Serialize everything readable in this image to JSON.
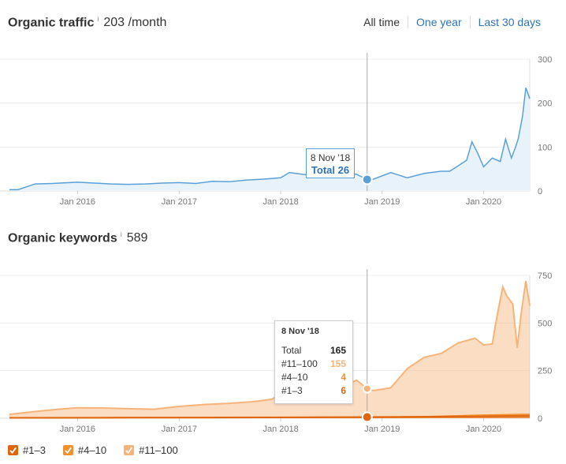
{
  "traffic": {
    "title": "Organic traffic",
    "info": "i",
    "value": "203 /month",
    "range_tabs": [
      {
        "label": "All time",
        "active": true
      },
      {
        "label": "One year",
        "active": false
      },
      {
        "label": "Last 30 days",
        "active": false
      }
    ],
    "tooltip": {
      "date": "8 Nov '18",
      "total": "Total 26"
    }
  },
  "keywords": {
    "title": "Organic keywords",
    "info": "i",
    "value": "589",
    "tooltip": {
      "date": "8 Nov '18",
      "rows": [
        {
          "label": "Total",
          "value": "165",
          "color": "#222222"
        },
        {
          "label": "#11–100",
          "value": "155",
          "color": "#f7b47a"
        },
        {
          "label": "#4–10",
          "value": "4",
          "color": "#f0902f"
        },
        {
          "label": "#1–3",
          "value": "6",
          "color": "#e0650f"
        }
      ]
    },
    "legend": [
      {
        "label": "#1–3",
        "color": "#e0650f",
        "icon": "checkbox-checked-icon"
      },
      {
        "label": "#4–10",
        "color": "#f0902f",
        "icon": "checkbox-checked-icon"
      },
      {
        "label": "#11–100",
        "color": "#f7b47a",
        "icon": "checkbox-checked-icon"
      }
    ]
  },
  "chart_data": [
    {
      "type": "area",
      "title": "Organic traffic",
      "x_tick_labels": [
        "Jan 2016",
        "Jan 2017",
        "Jan 2018",
        "Jan 2019",
        "Jan 2020"
      ],
      "y_tick_labels": [
        "0",
        "100",
        "200",
        "300"
      ],
      "ylim": [
        0,
        300
      ],
      "xlim": [
        "2015-05-01",
        "2020-06-15"
      ],
      "grid": true,
      "colors": {
        "line": "#5aa0d8",
        "fill": "#e8f2fb"
      },
      "series": [
        {
          "x": [
            "2015-05-01",
            "2015-06-01",
            "2015-08-01",
            "2015-10-01",
            "2016-01-01",
            "2016-03-01",
            "2016-05-01",
            "2016-07-01",
            "2016-09-01",
            "2016-11-01",
            "2017-01-01",
            "2017-03-01",
            "2017-05-01",
            "2017-07-01",
            "2017-09-01",
            "2017-11-01",
            "2018-01-01",
            "2018-02-01",
            "2018-04-01",
            "2018-06-01",
            "2018-08-01",
            "2018-10-01",
            "2018-11-08",
            "2018-12-01",
            "2019-02-01",
            "2019-04-01",
            "2019-06-01",
            "2019-08-01",
            "2019-09-01",
            "2019-10-01",
            "2019-11-01",
            "2019-11-20",
            "2019-12-10",
            "2020-01-01",
            "2020-02-01",
            "2020-03-01",
            "2020-03-20",
            "2020-04-10",
            "2020-04-25",
            "2020-05-05",
            "2020-05-20",
            "2020-06-01",
            "2020-06-15"
          ],
          "y": [
            3,
            3,
            16,
            17,
            20,
            18,
            16,
            15,
            16,
            18,
            19,
            17,
            22,
            21,
            25,
            27,
            30,
            42,
            37,
            30,
            40,
            38,
            26,
            27,
            42,
            30,
            40,
            45,
            45,
            57,
            70,
            112,
            87,
            55,
            75,
            67,
            118,
            75,
            100,
            120,
            170,
            235,
            210
          ]
        }
      ],
      "tooltip": {
        "x": "2018-11-08",
        "y": 26
      }
    },
    {
      "type": "area",
      "title": "Organic keywords",
      "x_tick_labels": [
        "Jan 2016",
        "Jan 2017",
        "Jan 2018",
        "Jan 2019",
        "Jan 2020"
      ],
      "y_tick_labels": [
        "0",
        "250",
        "500",
        "750"
      ],
      "ylim": [
        0,
        750
      ],
      "xlim": [
        "2015-05-01",
        "2020-06-15"
      ],
      "grid": true,
      "legend": "bottom-left",
      "series": [
        {
          "name": "#11–100",
          "color": "#f7b47a",
          "x": [
            "2015-05-01",
            "2015-07-01",
            "2015-09-01",
            "2015-11-01",
            "2016-01-01",
            "2016-04-01",
            "2016-07-01",
            "2016-10-01",
            "2017-01-01",
            "2017-04-01",
            "2017-07-01",
            "2017-10-01",
            "2017-12-01",
            "2018-01-01",
            "2018-03-01",
            "2018-05-01",
            "2018-06-01",
            "2018-08-01",
            "2018-10-01",
            "2018-11-08",
            "2018-12-01",
            "2019-02-01",
            "2019-04-01",
            "2019-06-01",
            "2019-08-01",
            "2019-10-01",
            "2019-12-01",
            "2020-01-01",
            "2020-02-01",
            "2020-02-20",
            "2020-03-10",
            "2020-03-25",
            "2020-04-15",
            "2020-05-01",
            "2020-05-15",
            "2020-06-01",
            "2020-06-15"
          ],
          "y": [
            20,
            30,
            40,
            48,
            55,
            54,
            50,
            47,
            62,
            72,
            78,
            88,
            100,
            130,
            215,
            165,
            200,
            160,
            200,
            155,
            145,
            160,
            260,
            320,
            340,
            395,
            420,
            385,
            390,
            550,
            690,
            640,
            600,
            370,
            550,
            720,
            590
          ]
        },
        {
          "name": "#4–10",
          "color": "#f0902f",
          "x": [
            "2015-05-01",
            "2016-06-01",
            "2017-06-01",
            "2018-06-01",
            "2018-11-08",
            "2019-06-01",
            "2020-01-01",
            "2020-06-15"
          ],
          "y": [
            2,
            3,
            3,
            5,
            4,
            8,
            16,
            20
          ]
        },
        {
          "name": "#1–3",
          "color": "#e0650f",
          "x": [
            "2015-05-01",
            "2016-06-01",
            "2017-06-01",
            "2018-06-01",
            "2018-11-08",
            "2019-06-01",
            "2020-01-01",
            "2020-06-15"
          ],
          "y": [
            2,
            3,
            4,
            5,
            6,
            8,
            10,
            12
          ]
        }
      ],
      "tooltip": {
        "x": "2018-11-08",
        "total": 165,
        "values": {
          "#11–100": 155,
          "#4–10": 4,
          "#1–3": 6
        }
      }
    }
  ]
}
